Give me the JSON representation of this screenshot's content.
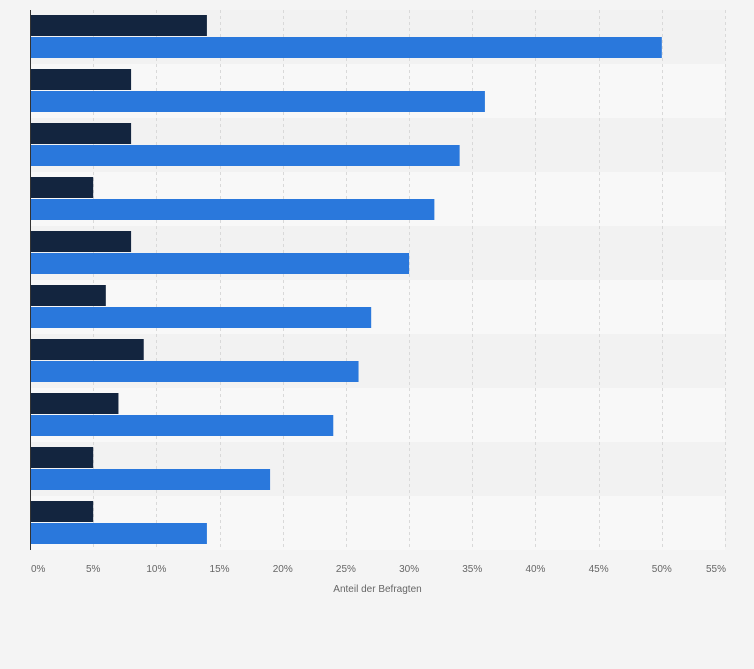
{
  "chart_data": {
    "type": "bar",
    "orientation": "horizontal",
    "categories": [
      "",
      "",
      "",
      "",
      "",
      "",
      "",
      "",
      "",
      ""
    ],
    "series": [
      {
        "values": [
          14,
          8,
          8,
          5,
          8,
          6,
          9,
          7,
          5,
          5
        ],
        "color": "#13253f"
      },
      {
        "values": [
          50,
          36,
          34,
          32,
          30,
          27,
          26,
          24,
          19,
          14
        ],
        "color": "#2a78dc"
      }
    ],
    "xlabel": "Anteil der Befragten",
    "xlim": [
      0,
      55
    ],
    "xticks": [
      0,
      5,
      10,
      15,
      20,
      25,
      30,
      35,
      40,
      45,
      50,
      55
    ],
    "tick_format": "{v}%",
    "grid": true,
    "legend": "none",
    "band_colors": [
      "#f2f2f2",
      "#f8f8f8"
    ]
  }
}
